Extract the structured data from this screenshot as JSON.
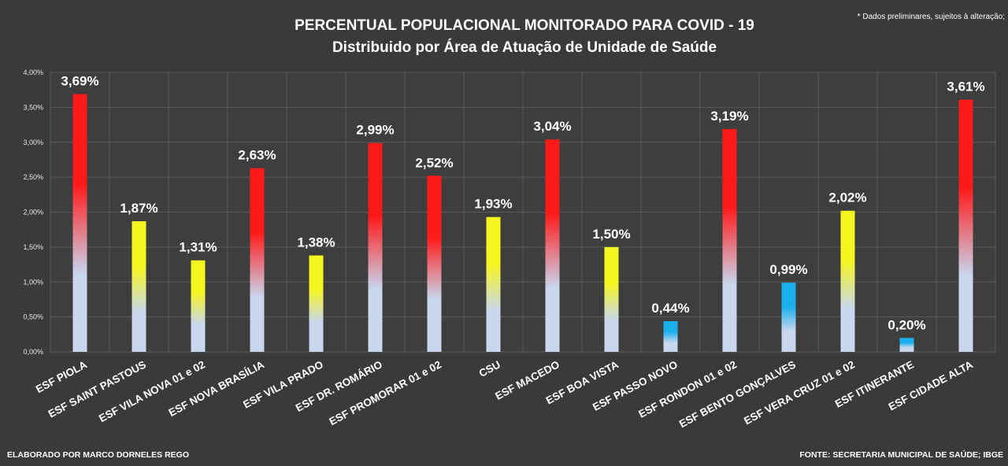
{
  "chart_data": {
    "type": "bar",
    "title": "PERCENTUAL POPULACIONAL MONITORADO PARA COVID - 19",
    "subtitle": "Distribuido por Área de Atuação de Unidade de Saúde",
    "note": "* Dados preliminares, sujeitos à alteração;",
    "ylim": [
      0,
      4
    ],
    "yticks": [
      "0,00%",
      "0,50%",
      "1,00%",
      "1,50%",
      "2,00%",
      "2,50%",
      "3,00%",
      "3,50%",
      "4,00%"
    ],
    "grid": true,
    "categories": [
      "ESF PIOLA",
      "ESF SAINT PASTOUS",
      "ESF VILA NOVA 01 e 02",
      "ESF NOVA BRASÍLIA",
      "ESF VILA PRADO",
      "ESF DR. ROMÁRIO",
      "ESF PROMORAR 01 e 02",
      "CSU",
      "ESF MACEDO",
      "ESF BOA VISTA",
      "ESF PASSO NOVO",
      "ESF RONDON 01 e 02",
      "ESF BENTO GONÇALVES",
      "ESF VERA CRUZ 01 e 02",
      "ESF ITINERANTE",
      "ESF CIDADE ALTA"
    ],
    "values": [
      3.69,
      1.87,
      1.31,
      2.63,
      1.38,
      2.99,
      2.52,
      1.93,
      3.04,
      1.5,
      0.44,
      3.19,
      0.99,
      2.02,
      0.2,
      3.61
    ],
    "data_labels": [
      "3,69%",
      "1,87%",
      "1,31%",
      "2,63%",
      "1,38%",
      "2,99%",
      "2,52%",
      "1,93%",
      "3,04%",
      "1,50%",
      "0,44%",
      "3,19%",
      "0,99%",
      "2,02%",
      "0,20%",
      "3,61%"
    ],
    "bar_colors": {
      "high": "#ff1a1a",
      "mid": "#f5f520",
      "low": "#1ab0ee",
      "base": "#c8d6ee"
    }
  },
  "footer": {
    "left": "ELABORADO POR MARCO DORNELES REGO",
    "right": "FONTE: SECRETARIA MUNICIPAL DE SAÚDE; IBGE"
  },
  "colors": {
    "background": "#3a3a3a",
    "plot_area": "#3e3e3e",
    "grid": "#5a5a5a"
  }
}
